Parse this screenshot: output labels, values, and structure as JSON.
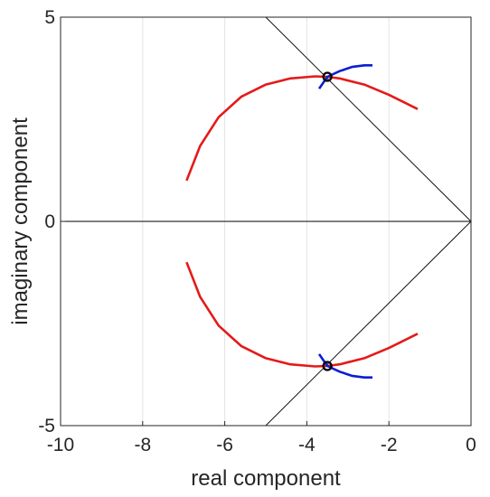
{
  "chart_data": {
    "type": "line",
    "title": "",
    "xlabel": "real component",
    "ylabel": "imaginary component",
    "xlim": [
      -10,
      0
    ],
    "ylim": [
      -5,
      5
    ],
    "xticks": [
      -10,
      -8,
      -6,
      -4,
      -2,
      0
    ],
    "xtick_labels": [
      "-10",
      "-8",
      "-6",
      "-4",
      "-2",
      "0"
    ],
    "yticks": [
      -5,
      0,
      5
    ],
    "ytick_labels": [
      "-5",
      "0",
      "5"
    ],
    "grid": "vertical lines only",
    "legend": "none",
    "reference_lines": [
      {
        "name": "zero-line",
        "points": [
          [
            -10,
            0
          ],
          [
            0,
            0
          ]
        ],
        "color": "#000000"
      },
      {
        "name": "damping-line-upper",
        "points": [
          [
            -5,
            5
          ],
          [
            0,
            0
          ]
        ],
        "color": "#000000"
      },
      {
        "name": "damping-line-lower",
        "points": [
          [
            -5,
            -5
          ],
          [
            0,
            0
          ]
        ],
        "color": "#000000"
      }
    ],
    "series": [
      {
        "color": "#e41a1a",
        "segments": [
          [
            [
              -6.93,
              1.0
            ],
            [
              -6.6,
              1.85
            ],
            [
              -6.15,
              2.55
            ],
            [
              -5.6,
              3.05
            ],
            [
              -5.0,
              3.35
            ],
            [
              -4.4,
              3.5
            ],
            [
              -3.8,
              3.55
            ],
            [
              -3.5,
              3.54
            ],
            [
              -3.2,
              3.5
            ],
            [
              -2.6,
              3.35
            ],
            [
              -2.0,
              3.1
            ],
            [
              -1.3,
              2.75
            ]
          ],
          [
            [
              -6.93,
              -1.0
            ],
            [
              -6.6,
              -1.85
            ],
            [
              -6.15,
              -2.55
            ],
            [
              -5.6,
              -3.05
            ],
            [
              -5.0,
              -3.35
            ],
            [
              -4.4,
              -3.5
            ],
            [
              -3.8,
              -3.55
            ],
            [
              -3.5,
              -3.54
            ],
            [
              -3.2,
              -3.5
            ],
            [
              -2.6,
              -3.35
            ],
            [
              -2.0,
              -3.1
            ],
            [
              -1.3,
              -2.75
            ]
          ]
        ]
      },
      {
        "color": "#0b1fd1",
        "segments": [
          [
            [
              -3.7,
              3.25
            ],
            [
              -3.5,
              3.54
            ],
            [
              -3.2,
              3.68
            ],
            [
              -2.9,
              3.78
            ],
            [
              -2.6,
              3.82
            ],
            [
              -2.4,
              3.82
            ]
          ],
          [
            [
              -3.7,
              -3.25
            ],
            [
              -3.5,
              -3.54
            ],
            [
              -3.2,
              -3.68
            ],
            [
              -2.9,
              -3.78
            ],
            [
              -2.6,
              -3.82
            ],
            [
              -2.4,
              -3.82
            ]
          ]
        ]
      }
    ],
    "markers": [
      {
        "x": -3.5,
        "y": 3.54,
        "shape": "circle",
        "color": "#000000"
      },
      {
        "x": -3.5,
        "y": -3.54,
        "shape": "circle",
        "color": "#000000"
      }
    ]
  }
}
